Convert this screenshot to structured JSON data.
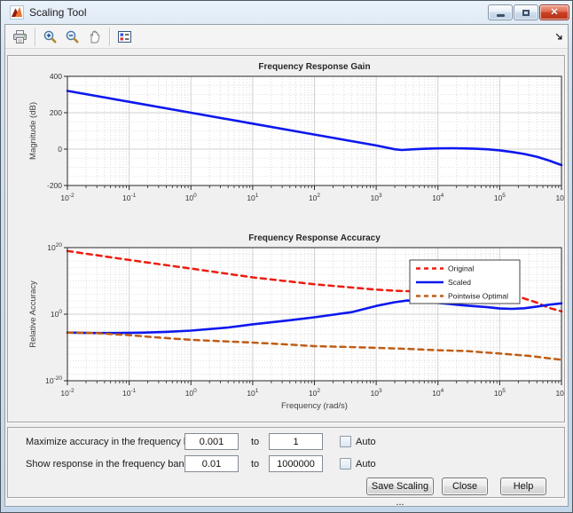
{
  "window": {
    "title": "Scaling Tool",
    "app_icon": "matlab-logo-icon",
    "window_buttons": [
      "minimize-button",
      "restore-button",
      "close-button"
    ]
  },
  "toolbar": {
    "icons": [
      "print-icon",
      "zoom-in-icon",
      "zoom-out-icon",
      "pan-icon",
      "insert-legend-icon",
      "toolbar-overflow-arrow"
    ]
  },
  "chart_data": [
    {
      "type": "line",
      "title": "Frequency Response Gain",
      "xlabel": "",
      "ylabel": "Magnitude (dB)",
      "xscale": "log",
      "xlim": [
        0.01,
        1000000
      ],
      "yscale": "linear",
      "ylim": [
        -200,
        400
      ],
      "yticks": [
        -200,
        0,
        200,
        400
      ],
      "grid": true,
      "series": [
        {
          "name": "Gain",
          "color": "#0d18ee",
          "style": "solid",
          "width": 2.6,
          "points": [
            [
              0.01,
              320
            ],
            [
              0.1,
              260
            ],
            [
              1,
              200
            ],
            [
              10,
              140
            ],
            [
              100,
              80
            ],
            [
              1000,
              20
            ],
            [
              2000,
              -1
            ],
            [
              2600,
              -5
            ],
            [
              4000,
              -1
            ],
            [
              6300,
              2
            ],
            [
              10000,
              4
            ],
            [
              16000,
              5
            ],
            [
              25000,
              4
            ],
            [
              40000,
              2
            ],
            [
              63000,
              -1
            ],
            [
              100000,
              -7
            ],
            [
              160000,
              -16
            ],
            [
              250000,
              -27
            ],
            [
              400000,
              -42
            ],
            [
              630000,
              -63
            ],
            [
              1000000,
              -88
            ]
          ]
        }
      ]
    },
    {
      "type": "line",
      "title": "Frequency Response Accuracy",
      "xlabel": "Frequency (rad/s)",
      "ylabel": "Relative Accuracy",
      "xscale": "log",
      "xlim": [
        0.01,
        1000000
      ],
      "yscale": "log",
      "ylim": [
        1e-20,
        1e+20
      ],
      "ytick_exponents": [
        -20,
        0,
        20
      ],
      "grid": true,
      "legend": {
        "position": "northeast",
        "entries": [
          "Original",
          "Scaled",
          "Pointwise Optimal"
        ]
      },
      "series": [
        {
          "name": "Original",
          "color": "#ed1c0f",
          "style": "dashed",
          "width": 2.5,
          "points": [
            [
              0.01,
              1e+19
            ],
            [
              0.1,
              2e+16
            ],
            [
              1,
              50000000000000.0
            ],
            [
              10,
              120000000000.0
            ],
            [
              100,
              1000000000.0
            ],
            [
              1000,
              25000000.0
            ],
            [
              2500,
              9000000.0
            ],
            [
              6300,
              7000000.0
            ],
            [
              16000,
              6500000.0
            ],
            [
              40000,
              5000000.0
            ],
            [
              100000,
              2500000.0
            ],
            [
              200000,
              200000.0
            ],
            [
              400000,
              3000.0
            ],
            [
              630000,
              80
            ],
            [
              1000000,
              7
            ]
          ]
        },
        {
          "name": "Scaled",
          "color": "#0d18ee",
          "style": "solid",
          "width": 2.6,
          "points": [
            [
              0.01,
              3e-06
            ],
            [
              0.025,
              2.2e-06
            ],
            [
              0.063,
              2.2e-06
            ],
            [
              0.16,
              2.8e-06
            ],
            [
              0.4,
              5e-06
            ],
            [
              1,
              1.2e-05
            ],
            [
              4,
              0.0001
            ],
            [
              10,
              0.0009
            ],
            [
              40,
              0.015
            ],
            [
              100,
              0.12
            ],
            [
              400,
              4
            ],
            [
              1000,
              300
            ],
            [
              2000,
              4000.0
            ],
            [
              3200,
              13000.0
            ],
            [
              5000,
              9000.0
            ],
            [
              10000,
              2500.0
            ],
            [
              25000,
              500.0
            ],
            [
              63000,
              130.0
            ],
            [
              100000,
              50.0
            ],
            [
              160000,
              40.0
            ],
            [
              250000,
              60.0
            ],
            [
              400000,
              200.0
            ],
            [
              630000,
              700.0
            ],
            [
              1000000,
              1800.0
            ]
          ]
        },
        {
          "name": "Pointwise Optimal",
          "color": "#c05d15",
          "style": "dashed",
          "width": 2.5,
          "points": [
            [
              0.01,
              3e-06
            ],
            [
              0.03,
              2e-06
            ],
            [
              0.1,
              5e-07
            ],
            [
              0.3,
              1e-07
            ],
            [
              1,
              2e-08
            ],
            [
              3,
              8e-09
            ],
            [
              10,
              3e-09
            ],
            [
              30,
              1e-09
            ],
            [
              100,
              2.5e-10
            ],
            [
              300,
              1.5e-10
            ],
            [
              1000,
              8e-11
            ],
            [
              3000,
              4e-11
            ],
            [
              10000,
              1.5e-11
            ],
            [
              30000,
              8e-12
            ],
            [
              100000,
              1.5e-12
            ],
            [
              300000,
              3e-13
            ],
            [
              1000000,
              2e-14
            ]
          ]
        }
      ]
    }
  ],
  "controls": {
    "rows": [
      {
        "label": "Maximize accuracy in the frequency band:",
        "from": "0.001",
        "to_word": "to",
        "to": "1",
        "auto_label": "Auto",
        "auto_checked": false
      },
      {
        "label": "Show response in the frequency band:",
        "from": "0.01",
        "to_word": "to",
        "to": "1000000",
        "auto_label": "Auto",
        "auto_checked": false
      }
    ],
    "buttons": [
      {
        "label": "Save Scaling ..."
      },
      {
        "label": "Close"
      },
      {
        "label": "Help"
      }
    ]
  }
}
